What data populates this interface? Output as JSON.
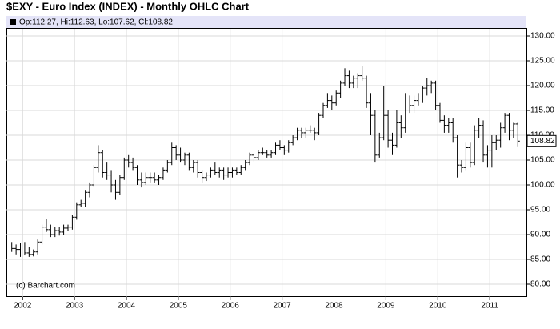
{
  "chart_data": {
    "type": "ohlc",
    "title": "$EXY - Euro Index (INDEX) - Monthly OHLC Chart",
    "info": "Op:112.27, Hi:112.63, Lo:107.62, Cl:108.82",
    "credit": "(c) Barchart.com",
    "color": "#000000",
    "grid": true,
    "categories": [
      null,
      null,
      null,
      "2002",
      null,
      null,
      null,
      null,
      null,
      null,
      null,
      null,
      null,
      null,
      null,
      "2003",
      null,
      null,
      null,
      null,
      null,
      null,
      null,
      null,
      null,
      null,
      null,
      "2004",
      null,
      null,
      null,
      null,
      null,
      null,
      null,
      null,
      null,
      null,
      null,
      "2005",
      null,
      null,
      null,
      null,
      null,
      null,
      null,
      null,
      null,
      null,
      null,
      "2006",
      null,
      null,
      null,
      null,
      null,
      null,
      null,
      null,
      null,
      null,
      null,
      "2007",
      null,
      null,
      null,
      null,
      null,
      null,
      null,
      null,
      null,
      null,
      null,
      "2008",
      null,
      null,
      null,
      null,
      null,
      null,
      null,
      null,
      null,
      null,
      null,
      "2009",
      null,
      null,
      null,
      null,
      null,
      null,
      null,
      null,
      null,
      null,
      null,
      "2010",
      null,
      null,
      null,
      null,
      null,
      null,
      null,
      null,
      null,
      null,
      null,
      "2011",
      null,
      null,
      null,
      null,
      null,
      null
    ],
    "open": [
      87.5,
      87.2,
      87.0,
      87.5,
      86.3,
      86.0,
      86.5,
      88.5,
      91.5,
      91.0,
      90.0,
      90.8,
      90.5,
      91.3,
      91.5,
      93.5,
      96.0,
      96.3,
      98.5,
      100.0,
      103.5,
      106.5,
      102.5,
      102.0,
      100.0,
      98.5,
      101.5,
      105.0,
      104.5,
      103.5,
      101.0,
      100.5,
      101.5,
      101.5,
      101.0,
      101.5,
      103.0,
      104.5,
      107.5,
      106.0,
      105.0,
      106.0,
      103.5,
      104.5,
      102.5,
      101.5,
      102.0,
      103.0,
      102.5,
      103.0,
      102.0,
      102.5,
      103.0,
      102.5,
      103.5,
      104.5,
      106.0,
      105.5,
      106.5,
      106.5,
      106.0,
      106.5,
      108.0,
      107.5,
      107.0,
      108.5,
      109.5,
      111.0,
      110.5,
      111.0,
      111.0,
      110.5,
      114.0,
      116.0,
      117.0,
      116.5,
      118.5,
      120.5,
      122.0,
      120.5,
      121.5,
      122.0,
      121.5,
      116.5,
      114.0,
      106.0,
      109.5,
      114.0,
      109.0,
      108.0,
      112.5,
      111.5,
      117.5,
      116.0,
      117.0,
      117.5,
      119.5,
      120.0,
      120.5,
      116.0,
      113.0,
      112.0,
      112.5,
      109.5,
      104.0,
      103.5,
      107.5,
      104.5,
      111.0,
      112.0,
      106.0,
      107.0,
      108.5,
      109.0,
      111.5,
      114.0,
      111.0,
      112.27
    ],
    "high": [
      88.5,
      88.0,
      88.3,
      88.5,
      87.5,
      87.0,
      89.0,
      92.0,
      93.2,
      92.0,
      91.5,
      91.5,
      92.0,
      92.0,
      94.0,
      96.5,
      97.0,
      99.0,
      100.5,
      104.0,
      108.0,
      107.0,
      104.5,
      103.0,
      101.0,
      102.0,
      105.5,
      106.0,
      105.5,
      104.0,
      102.5,
      102.5,
      102.5,
      102.5,
      102.0,
      103.5,
      105.0,
      108.5,
      108.0,
      107.5,
      106.5,
      106.5,
      105.0,
      105.0,
      103.0,
      102.5,
      103.5,
      104.5,
      103.5,
      103.5,
      103.5,
      103.5,
      103.5,
      104.0,
      105.0,
      106.5,
      106.5,
      107.0,
      107.5,
      107.0,
      107.0,
      108.5,
      109.0,
      108.0,
      109.0,
      110.0,
      111.5,
      111.5,
      111.5,
      112.0,
      111.5,
      114.5,
      116.5,
      118.5,
      118.0,
      119.0,
      121.0,
      123.5,
      123.0,
      122.0,
      122.5,
      124.0,
      122.0,
      118.5,
      115.0,
      110.5,
      120.0,
      115.0,
      110.5,
      115.0,
      114.0,
      118.5,
      118.0,
      118.0,
      118.5,
      120.0,
      121.5,
      121.0,
      121.0,
      116.5,
      114.0,
      113.5,
      113.5,
      110.0,
      105.0,
      108.5,
      108.5,
      112.0,
      113.5,
      113.0,
      108.0,
      110.0,
      110.0,
      112.5,
      114.5,
      114.5,
      112.5,
      112.63
    ],
    "low": [
      86.5,
      86.0,
      85.5,
      85.8,
      85.5,
      85.6,
      86.0,
      88.0,
      90.5,
      89.5,
      89.5,
      89.8,
      90.0,
      90.8,
      91.0,
      93.0,
      95.5,
      95.5,
      97.5,
      99.5,
      102.5,
      101.5,
      101.0,
      98.5,
      97.0,
      98.0,
      101.0,
      103.5,
      103.0,
      100.0,
      99.5,
      100.0,
      100.5,
      100.5,
      100.0,
      101.0,
      102.5,
      104.0,
      105.0,
      104.5,
      104.0,
      103.0,
      102.5,
      101.5,
      100.5,
      100.8,
      101.5,
      102.0,
      101.5,
      101.0,
      101.5,
      101.5,
      102.0,
      102.0,
      103.0,
      104.0,
      104.5,
      105.0,
      106.0,
      105.5,
      105.5,
      106.0,
      107.0,
      106.0,
      106.5,
      108.0,
      109.0,
      109.5,
      109.5,
      110.5,
      109.0,
      110.0,
      113.5,
      115.5,
      115.0,
      116.0,
      117.5,
      120.0,
      119.5,
      119.5,
      119.5,
      121.0,
      115.5,
      110.0,
      104.5,
      105.5,
      109.0,
      107.5,
      106.0,
      107.5,
      109.5,
      110.5,
      114.5,
      114.5,
      116.0,
      116.5,
      118.0,
      118.5,
      115.0,
      112.5,
      110.5,
      110.5,
      108.5,
      101.5,
      102.5,
      103.0,
      103.5,
      104.0,
      109.5,
      104.5,
      103.5,
      103.5,
      107.0,
      107.5,
      110.5,
      109.0,
      109.5,
      107.62
    ],
    "close": [
      87.2,
      87.0,
      87.5,
      86.3,
      86.0,
      86.5,
      88.5,
      91.5,
      91.0,
      90.0,
      90.8,
      90.5,
      91.3,
      91.5,
      93.5,
      96.0,
      96.3,
      98.5,
      100.0,
      103.5,
      106.5,
      102.5,
      102.0,
      100.0,
      98.5,
      101.5,
      105.0,
      104.5,
      103.5,
      101.0,
      100.5,
      101.5,
      101.5,
      101.0,
      101.5,
      103.0,
      104.5,
      107.5,
      106.0,
      105.0,
      106.0,
      103.5,
      104.5,
      102.5,
      101.5,
      102.0,
      103.0,
      102.5,
      103.0,
      102.0,
      102.5,
      103.0,
      102.5,
      103.5,
      104.5,
      106.0,
      105.5,
      106.5,
      106.5,
      106.0,
      106.5,
      108.0,
      107.5,
      107.0,
      108.5,
      109.5,
      111.0,
      110.5,
      111.0,
      111.0,
      110.5,
      114.0,
      116.0,
      117.0,
      116.5,
      118.5,
      120.5,
      122.0,
      120.5,
      121.5,
      122.0,
      121.5,
      116.5,
      114.0,
      106.0,
      109.5,
      114.0,
      109.0,
      108.0,
      112.5,
      111.5,
      117.5,
      116.0,
      117.0,
      117.5,
      119.5,
      120.0,
      120.5,
      116.0,
      113.0,
      112.0,
      112.5,
      109.5,
      104.0,
      103.5,
      107.5,
      104.5,
      111.0,
      112.0,
      106.0,
      107.0,
      108.5,
      109.0,
      111.5,
      114.0,
      111.0,
      112.27,
      108.82
    ],
    "ylim": [
      77.42,
      131.45
    ],
    "yticks": [
      {
        "value": 80,
        "label": "80.00"
      },
      {
        "value": 85,
        "label": "85.00"
      },
      {
        "value": 90,
        "label": "90.00"
      },
      {
        "value": 95,
        "label": "95.00"
      },
      {
        "value": 100,
        "label": "100.00"
      },
      {
        "value": 105,
        "label": "105.00"
      },
      {
        "value": 110,
        "label": "110.00"
      },
      {
        "value": 115,
        "label": "115.00"
      },
      {
        "value": 120,
        "label": "120.00"
      },
      {
        "value": 125,
        "label": "125.00"
      },
      {
        "value": 130,
        "label": "130.00"
      }
    ]
  }
}
